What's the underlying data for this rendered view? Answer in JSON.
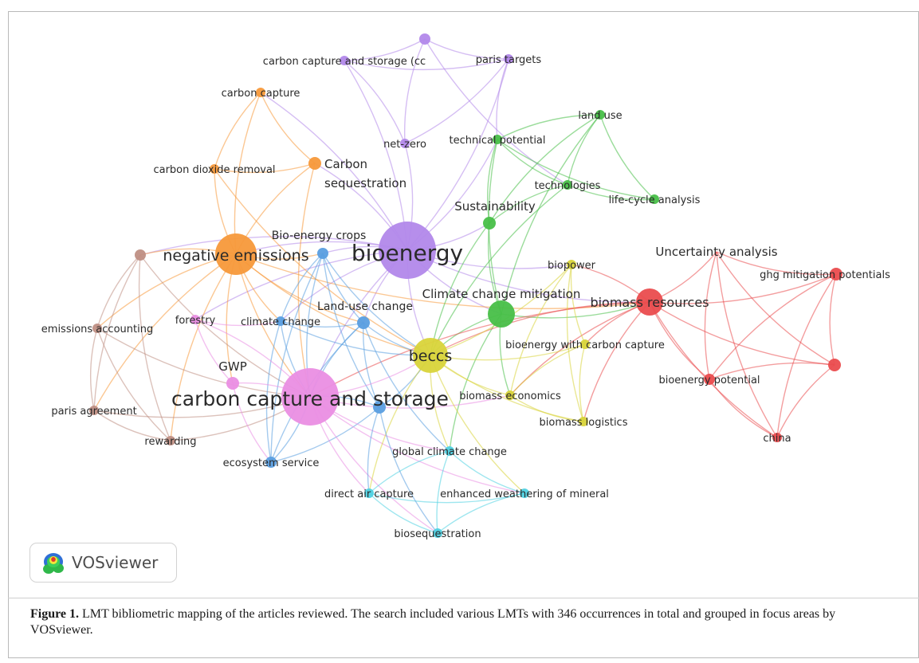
{
  "figure": {
    "label": "Figure 1.",
    "caption": " LMT bibliometric mapping of the articles reviewed. The search included various LMTs with 346 occurrences in total and grouped in focus areas by VOSviewer."
  },
  "logo": {
    "text": "VOSviewer",
    "icon": "vosviewer-density-icon"
  },
  "cluster_colors": {
    "purple": "#b288ea",
    "orange": "#f7993a",
    "green": "#48bf48",
    "red": "#ea4c4e",
    "brown": "#bf8f84",
    "blue": "#5a9ee0",
    "pink": "#ea8ee3",
    "yellow": "#d9d43a",
    "cyan": "#4fd1e1"
  },
  "nodes": [
    {
      "id": "bioenergy",
      "label": "bioenergy",
      "cluster": "purple",
      "weight": 10
    },
    {
      "id": "carbon-capture-and-storage-cc",
      "label": "carbon capture and storage (cc",
      "cluster": "purple",
      "weight": 1
    },
    {
      "id": "paris-targets",
      "label": "paris targets",
      "cluster": "purple",
      "weight": 1
    },
    {
      "id": "net-zero",
      "label": "net-zero",
      "cluster": "purple",
      "weight": 1
    },
    {
      "id": "purple-unlabeled",
      "label": "",
      "cluster": "purple",
      "weight": 1
    },
    {
      "id": "negative-emissions",
      "label": "negative emissions",
      "cluster": "orange",
      "weight": 7
    },
    {
      "id": "carbon-capture",
      "label": "carbon capture",
      "cluster": "orange",
      "weight": 1
    },
    {
      "id": "carbon-dioxide-removal",
      "label": "carbon dioxide removal",
      "cluster": "orange",
      "weight": 1
    },
    {
      "id": "carbon-sequestration",
      "label": "Carbon\nsequestration",
      "cluster": "orange",
      "weight": 1.5
    },
    {
      "id": "land-use",
      "label": "land use",
      "cluster": "green",
      "weight": 1
    },
    {
      "id": "technical-potential",
      "label": "technical potential",
      "cluster": "green",
      "weight": 1
    },
    {
      "id": "technologies",
      "label": "technologies",
      "cluster": "green",
      "weight": 1
    },
    {
      "id": "life-cycle-analysis",
      "label": "life-cycle analysis",
      "cluster": "green",
      "weight": 1
    },
    {
      "id": "sustainability",
      "label": "Sustainability",
      "cluster": "green",
      "weight": 1.5
    },
    {
      "id": "climate-change-mitigation",
      "label": "Climate change mitigation",
      "cluster": "green",
      "weight": 4
    },
    {
      "id": "biomass-resources",
      "label": "biomass resources",
      "cluster": "red",
      "weight": 4
    },
    {
      "id": "uncertainty-analysis",
      "label": "Uncertainty analysis",
      "cluster": "red",
      "weight": 1.5
    },
    {
      "id": "ghg-mitigation-potentials",
      "label": "ghg mitigation potentials",
      "cluster": "red",
      "weight": 1
    },
    {
      "id": "bioenergy-potential",
      "label": "bioenergy potential",
      "cluster": "red",
      "weight": 1
    },
    {
      "id": "china",
      "label": "china",
      "cluster": "red",
      "weight": 1
    },
    {
      "id": "red-unlabeled",
      "label": "",
      "cluster": "red",
      "weight": 1
    },
    {
      "id": "brown-top",
      "label": "",
      "cluster": "brown",
      "weight": 1
    },
    {
      "id": "emissions-accounting",
      "label": "emissions accounting",
      "cluster": "brown",
      "weight": 1
    },
    {
      "id": "paris-agreement",
      "label": "paris agreement",
      "cluster": "brown",
      "weight": 1
    },
    {
      "id": "rewarding",
      "label": "rewarding",
      "cluster": "brown",
      "weight": 1
    },
    {
      "id": "bio-energy-crops",
      "label": "Bio-energy crops",
      "cluster": "blue",
      "weight": 1.5
    },
    {
      "id": "climate-change",
      "label": "climate change",
      "cluster": "blue",
      "weight": 1
    },
    {
      "id": "land-use-change",
      "label": "Land-use change",
      "cluster": "blue",
      "weight": 1.5
    },
    {
      "id": "ecosystem-service",
      "label": "ecosystem service",
      "cluster": "blue",
      "weight": 1
    },
    {
      "id": "blue-unlabeled",
      "label": "",
      "cluster": "blue",
      "weight": 1.5
    },
    {
      "id": "carbon-capture-and-storage",
      "label": "carbon capture and storage",
      "cluster": "pink",
      "weight": 10
    },
    {
      "id": "forestry",
      "label": "forestry",
      "cluster": "pink",
      "weight": 1
    },
    {
      "id": "gwp",
      "label": "GWP",
      "cluster": "pink",
      "weight": 1.5
    },
    {
      "id": "beccs",
      "label": "beccs",
      "cluster": "yellow",
      "weight": 6
    },
    {
      "id": "biopower",
      "label": "biopower",
      "cluster": "yellow",
      "weight": 1
    },
    {
      "id": "bioenergy-with-carbon-capture",
      "label": "bioenergy with carbon capture",
      "cluster": "yellow",
      "weight": 1
    },
    {
      "id": "biomass-economics",
      "label": "biomass economics",
      "cluster": "yellow",
      "weight": 1
    },
    {
      "id": "biomass-logistics",
      "label": "biomass logistics",
      "cluster": "yellow",
      "weight": 1
    },
    {
      "id": "global-climate-change",
      "label": "global climate change",
      "cluster": "cyan",
      "weight": 1
    },
    {
      "id": "direct-air-capture",
      "label": "direct air capture",
      "cluster": "cyan",
      "weight": 1
    },
    {
      "id": "enhanced-weathering-of-mineral",
      "label": "enhanced weathering of mineral",
      "cluster": "cyan",
      "weight": 1
    },
    {
      "id": "biosequestration",
      "label": "biosequestration",
      "cluster": "cyan",
      "weight": 1
    }
  ],
  "links": [
    [
      "bioenergy",
      "carbon-capture-and-storage"
    ],
    [
      "bioenergy",
      "negative-emissions"
    ],
    [
      "bioenergy",
      "beccs"
    ],
    [
      "bioenergy",
      "biomass-resources"
    ],
    [
      "bioenergy",
      "carbon-sequestration"
    ],
    [
      "bioenergy",
      "net-zero"
    ],
    [
      "bioenergy",
      "paris-targets"
    ],
    [
      "bioenergy",
      "carbon-capture-and-storage-cc"
    ],
    [
      "bioenergy",
      "climate-change-mitigation"
    ],
    [
      "bioenergy",
      "sustainability"
    ],
    [
      "bioenergy",
      "technical-potential"
    ],
    [
      "bioenergy",
      "land-use-change"
    ],
    [
      "bioenergy",
      "bio-energy-crops"
    ],
    [
      "bioenergy",
      "carbon-capture"
    ],
    [
      "bioenergy",
      "brown-top"
    ],
    [
      "bioenergy",
      "forestry"
    ],
    [
      "bioenergy",
      "climate-change"
    ],
    [
      "bioenergy",
      "biopower"
    ],
    [
      "carbon-capture-and-storage-cc",
      "purple-unlabeled"
    ],
    [
      "carbon-capture-and-storage-cc",
      "paris-targets"
    ],
    [
      "purple-unlabeled",
      "paris-targets"
    ],
    [
      "net-zero",
      "carbon-capture-and-storage-cc"
    ],
    [
      "net-zero",
      "paris-targets"
    ],
    [
      "purple-unlabeled",
      "net-zero"
    ],
    [
      "paris-targets",
      "technical-potential"
    ],
    [
      "purple-unlabeled",
      "technologies"
    ],
    [
      "carbon-capture",
      "carbon-dioxide-removal"
    ],
    [
      "carbon-capture",
      "carbon-sequestration"
    ],
    [
      "carbon-capture",
      "negative-emissions"
    ],
    [
      "carbon-dioxide-removal",
      "carbon-sequestration"
    ],
    [
      "carbon-dioxide-removal",
      "negative-emissions"
    ],
    [
      "carbon-sequestration",
      "negative-emissions"
    ],
    [
      "carbon-sequestration",
      "carbon-capture-and-storage"
    ],
    [
      "carbon-dioxide-removal",
      "beccs"
    ],
    [
      "negative-emissions",
      "carbon-capture-and-storage"
    ],
    [
      "negative-emissions",
      "beccs"
    ],
    [
      "negative-emissions",
      "brown-top"
    ],
    [
      "negative-emissions",
      "emissions-accounting"
    ],
    [
      "negative-emissions",
      "climate-change"
    ],
    [
      "negative-emissions",
      "bio-energy-crops"
    ],
    [
      "negative-emissions",
      "biomass-resources"
    ],
    [
      "negative-emissions",
      "gwp"
    ],
    [
      "negative-emissions",
      "land-use-change"
    ],
    [
      "negative-emissions",
      "paris-agreement"
    ],
    [
      "negative-emissions",
      "rewarding"
    ],
    [
      "land-use",
      "technical-potential"
    ],
    [
      "land-use",
      "technologies"
    ],
    [
      "land-use",
      "life-cycle-analysis"
    ],
    [
      "land-use",
      "sustainability"
    ],
    [
      "land-use",
      "climate-change-mitigation"
    ],
    [
      "technical-potential",
      "technologies"
    ],
    [
      "technical-potential",
      "sustainability"
    ],
    [
      "technical-potential",
      "climate-change-mitigation"
    ],
    [
      "technologies",
      "life-cycle-analysis"
    ],
    [
      "technologies",
      "sustainability"
    ],
    [
      "technical-potential",
      "life-cycle-analysis"
    ],
    [
      "sustainability",
      "climate-change-mitigation"
    ],
    [
      "sustainability",
      "beccs"
    ],
    [
      "climate-change-mitigation",
      "beccs"
    ],
    [
      "climate-change-mitigation",
      "biomass-resources"
    ],
    [
      "climate-change-mitigation",
      "global-climate-change"
    ],
    [
      "climate-change-mitigation",
      "biomass-economics"
    ],
    [
      "technologies",
      "beccs"
    ],
    [
      "biomass-resources",
      "uncertainty-analysis"
    ],
    [
      "biomass-resources",
      "ghg-mitigation-potentials"
    ],
    [
      "biomass-resources",
      "red-unlabeled"
    ],
    [
      "biomass-resources",
      "bioenergy-potential"
    ],
    [
      "biomass-resources",
      "china"
    ],
    [
      "biomass-resources",
      "beccs"
    ],
    [
      "biomass-resources",
      "biopower"
    ],
    [
      "biomass-resources",
      "bioenergy-with-carbon-capture"
    ],
    [
      "biomass-resources",
      "biomass-economics"
    ],
    [
      "biomass-resources",
      "biomass-logistics"
    ],
    [
      "biomass-resources",
      "carbon-capture-and-storage"
    ],
    [
      "uncertainty-analysis",
      "ghg-mitigation-potentials"
    ],
    [
      "uncertainty-analysis",
      "red-unlabeled"
    ],
    [
      "uncertainty-analysis",
      "bioenergy-potential"
    ],
    [
      "uncertainty-analysis",
      "china"
    ],
    [
      "ghg-mitigation-potentials",
      "red-unlabeled"
    ],
    [
      "ghg-mitigation-potentials",
      "bioenergy-potential"
    ],
    [
      "ghg-mitigation-potentials",
      "china"
    ],
    [
      "red-unlabeled",
      "bioenergy-potential"
    ],
    [
      "red-unlabeled",
      "china"
    ],
    [
      "bioenergy-potential",
      "china"
    ],
    [
      "brown-top",
      "emissions-accounting"
    ],
    [
      "brown-top",
      "paris-agreement"
    ],
    [
      "brown-top",
      "rewarding"
    ],
    [
      "emissions-accounting",
      "paris-agreement"
    ],
    [
      "emissions-accounting",
      "rewarding"
    ],
    [
      "paris-agreement",
      "rewarding"
    ],
    [
      "paris-agreement",
      "carbon-capture-and-storage"
    ],
    [
      "rewarding",
      "carbon-capture-and-storage"
    ],
    [
      "emissions-accounting",
      "carbon-capture-and-storage"
    ],
    [
      "brown-top",
      "carbon-capture-and-storage"
    ],
    [
      "bio-energy-crops",
      "climate-change"
    ],
    [
      "bio-energy-crops",
      "land-use-change"
    ],
    [
      "bio-energy-crops",
      "carbon-capture-and-storage"
    ],
    [
      "bio-energy-crops",
      "ecosystem-service"
    ],
    [
      "bio-energy-crops",
      "blue-unlabeled"
    ],
    [
      "bio-energy-crops",
      "beccs"
    ],
    [
      "climate-change",
      "land-use-change"
    ],
    [
      "climate-change",
      "carbon-capture-and-storage"
    ],
    [
      "climate-change",
      "ecosystem-service"
    ],
    [
      "land-use-change",
      "carbon-capture-and-storage"
    ],
    [
      "land-use-change",
      "ecosystem-service"
    ],
    [
      "land-use-change",
      "blue-unlabeled"
    ],
    [
      "land-use-change",
      "beccs"
    ],
    [
      "ecosystem-service",
      "carbon-capture-and-storage"
    ],
    [
      "ecosystem-service",
      "blue-unlabeled"
    ],
    [
      "blue-unlabeled",
      "carbon-capture-and-storage"
    ],
    [
      "blue-unlabeled",
      "beccs"
    ],
    [
      "climate-change",
      "beccs"
    ],
    [
      "gwp",
      "ecosystem-service"
    ],
    [
      "land-use-change",
      "global-climate-change"
    ],
    [
      "carbon-capture-and-storage",
      "beccs"
    ],
    [
      "carbon-capture-and-storage",
      "forestry"
    ],
    [
      "carbon-capture-and-storage",
      "gwp"
    ],
    [
      "forestry",
      "gwp"
    ],
    [
      "forestry",
      "climate-change"
    ],
    [
      "carbon-capture-and-storage",
      "global-climate-change"
    ],
    [
      "carbon-capture-and-storage",
      "direct-air-capture"
    ],
    [
      "carbon-capture-and-storage",
      "biomass-economics"
    ],
    [
      "carbon-capture-and-storage",
      "enhanced-weathering-of-mineral"
    ],
    [
      "carbon-capture-and-storage",
      "biosequestration"
    ],
    [
      "beccs",
      "biopower"
    ],
    [
      "beccs",
      "bioenergy-with-carbon-capture"
    ],
    [
      "beccs",
      "biomass-economics"
    ],
    [
      "beccs",
      "biomass-logistics"
    ],
    [
      "beccs",
      "global-climate-change"
    ],
    [
      "biopower",
      "bioenergy-with-carbon-capture"
    ],
    [
      "biopower",
      "biomass-economics"
    ],
    [
      "biopower",
      "biomass-logistics"
    ],
    [
      "bioenergy-with-carbon-capture",
      "biomass-economics"
    ],
    [
      "bioenergy-with-carbon-capture",
      "biomass-logistics"
    ],
    [
      "biomass-economics",
      "biomass-logistics"
    ],
    [
      "beccs",
      "direct-air-capture"
    ],
    [
      "beccs",
      "enhanced-weathering-of-mineral"
    ],
    [
      "global-climate-change",
      "direct-air-capture"
    ],
    [
      "global-climate-change",
      "enhanced-weathering-of-mineral"
    ],
    [
      "global-climate-change",
      "biosequestration"
    ],
    [
      "direct-air-capture",
      "enhanced-weathering-of-mineral"
    ],
    [
      "direct-air-capture",
      "biosequestration"
    ],
    [
      "enhanced-weathering-of-mineral",
      "biosequestration"
    ],
    [
      "blue-unlabeled",
      "direct-air-capture"
    ],
    [
      "blue-unlabeled",
      "biosequestration"
    ]
  ]
}
